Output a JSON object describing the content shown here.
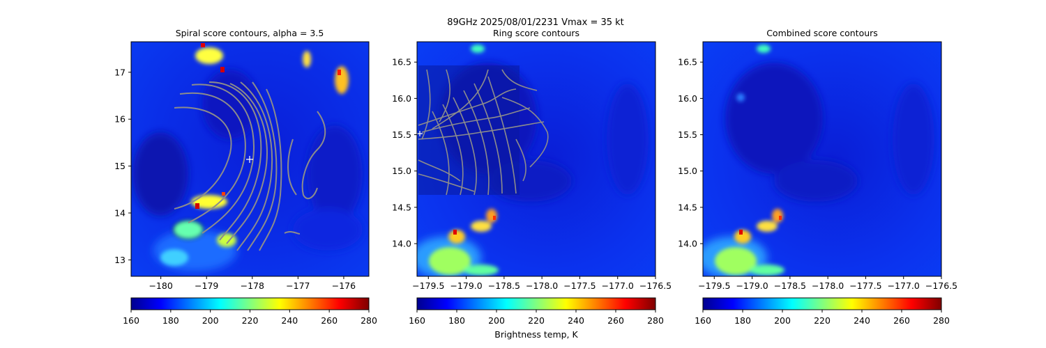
{
  "suptitle": {
    "line1": "89GHz  2025/08/01/2231    Vmax = 35 kt"
  },
  "colorbar_label": "Brightness temp, K",
  "colormap": [
    "#7f0000",
    "#ff0000",
    "#ff8000",
    "#ffff00",
    "#80ff80",
    "#00ffff",
    "#0080ff",
    "#0000ff",
    "#00008f"
  ],
  "chart_data": [
    {
      "type": "heatmap",
      "title": "Spiral score contours, alpha =  3.5",
      "xlim": [
        -180.65,
        -175.45
      ],
      "ylim": [
        12.65,
        17.65
      ],
      "xticks": [
        -180,
        -179,
        -178,
        -177,
        -176
      ],
      "xtick_labels": [
        "−180",
        "−179",
        "−178",
        "−177",
        "−176"
      ],
      "yticks": [
        13,
        14,
        15,
        16,
        17
      ],
      "ytick_labels": [
        "13",
        "14",
        "15",
        "16",
        "17"
      ],
      "center_marker": {
        "x": -178.0,
        "y": 15.15
      },
      "colorbar": {
        "min": 160,
        "max": 280,
        "ticks": [
          160,
          180,
          200,
          220,
          240,
          260,
          280
        ]
      }
    },
    {
      "type": "heatmap",
      "title": "Ring score contours",
      "xlim": [
        -179.65,
        -176.5
      ],
      "ylim": [
        13.55,
        16.78
      ],
      "xticks": [
        -179.5,
        -179.0,
        -178.5,
        -178.0,
        -177.5,
        -177.0,
        -176.5
      ],
      "xtick_labels": [
        "−179.5",
        "−179.0",
        "−178.5",
        "−178.0",
        "−177.5",
        "−177.0",
        "−176.5"
      ],
      "yticks": [
        14.0,
        14.5,
        15.0,
        15.5,
        16.0,
        16.5
      ],
      "ytick_labels": [
        "14.0",
        "14.5",
        "15.0",
        "15.5",
        "16.0",
        "16.5"
      ],
      "center_marker": {
        "x": -179.62,
        "y": 15.5
      },
      "colorbar": {
        "min": 160,
        "max": 280,
        "ticks": [
          160,
          180,
          200,
          220,
          240,
          260,
          280
        ]
      }
    },
    {
      "type": "heatmap",
      "title": "Combined score contours",
      "xlim": [
        -179.65,
        -176.5
      ],
      "ylim": [
        13.55,
        16.78
      ],
      "xticks": [
        -179.5,
        -179.0,
        -178.5,
        -178.0,
        -177.5,
        -177.0,
        -176.5
      ],
      "xtick_labels": [
        "−179.5",
        "−179.0",
        "−178.5",
        "−178.0",
        "−177.5",
        "−177.0",
        "−176.5"
      ],
      "yticks": [
        14.0,
        14.5,
        15.0,
        15.5,
        16.0,
        16.5
      ],
      "ytick_labels": [
        "14.0",
        "14.5",
        "15.0",
        "15.5",
        "16.0",
        "16.5"
      ],
      "colorbar": {
        "min": 160,
        "max": 280,
        "ticks": [
          160,
          180,
          200,
          220,
          240,
          260,
          280
        ]
      }
    }
  ]
}
